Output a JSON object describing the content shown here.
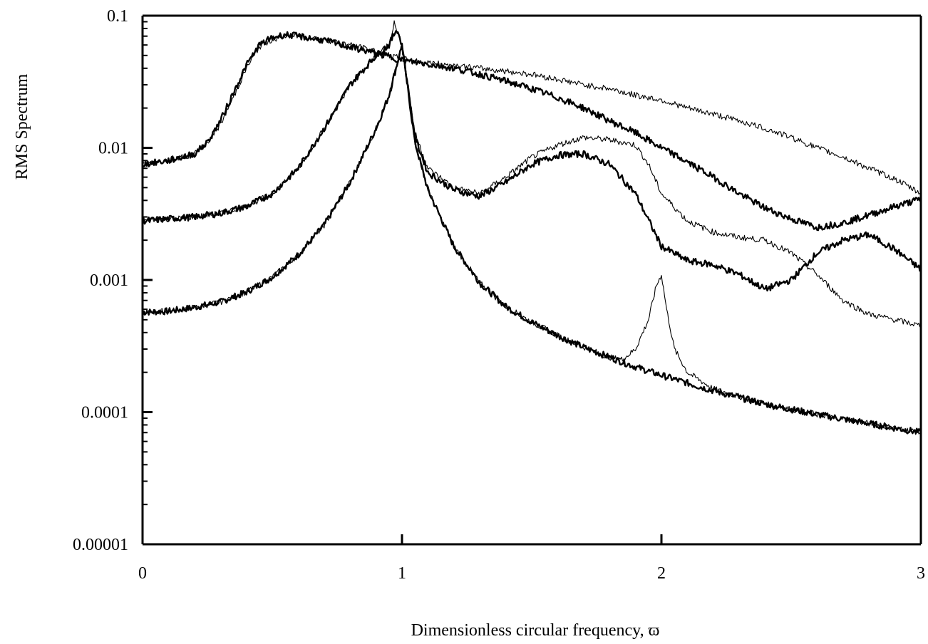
{
  "chart_data": {
    "type": "line",
    "xlabel": "Dimensionless circular frequency, ϖ",
    "ylabel": "RMS Spectrum",
    "xlim": [
      0,
      3
    ],
    "ylim": [
      1e-05,
      0.1
    ],
    "yscale": "log",
    "grid": false,
    "legend": "none",
    "x_ticks": [
      0,
      1,
      2,
      3
    ],
    "x_tick_labels": [
      "0",
      "1",
      "2",
      "3"
    ],
    "y_ticks": [
      1e-05,
      0.0001,
      0.001,
      0.01,
      0.1
    ],
    "y_tick_labels": [
      "0.00001",
      "0.0001",
      "0.001",
      "0.01",
      "0.1"
    ],
    "colors": {
      "line": "#000000",
      "axis": "#000000",
      "background": "#ffffff"
    },
    "series": [
      {
        "style": "thick",
        "x": [
          0,
          0.1,
          0.2,
          0.3,
          0.4,
          0.5,
          0.6,
          0.7,
          0.8,
          0.9,
          0.95,
          1.0,
          1.05,
          1.1,
          1.2,
          1.3,
          1.4,
          1.5,
          1.6,
          1.7,
          1.8,
          1.9,
          2.0,
          2.2,
          2.4,
          2.6,
          2.8,
          3.0
        ],
        "y": [
          0.00057,
          0.00058,
          0.00062,
          0.00068,
          0.00081,
          0.00105,
          0.00155,
          0.0026,
          0.0055,
          0.014,
          0.025,
          0.06,
          0.011,
          0.0048,
          0.0018,
          0.00095,
          0.00063,
          0.00048,
          0.00038,
          0.00031,
          0.00026,
          0.00022,
          0.00019,
          0.000145,
          0.000115,
          9.6e-05,
          8.2e-05,
          7e-05
        ]
      },
      {
        "style": "thin",
        "x": [
          0,
          0.1,
          0.2,
          0.3,
          0.4,
          0.5,
          0.6,
          0.7,
          0.8,
          0.9,
          0.95,
          1.0,
          1.05,
          1.1,
          1.2,
          1.3,
          1.4,
          1.5,
          1.6,
          1.7,
          1.8,
          1.85,
          1.9,
          1.95,
          1.98,
          2.0,
          2.02,
          2.05,
          2.1,
          2.2,
          2.4,
          2.6,
          2.8,
          3.0
        ],
        "y": [
          0.00057,
          0.00058,
          0.00062,
          0.00068,
          0.00081,
          0.00105,
          0.00155,
          0.0026,
          0.0055,
          0.014,
          0.025,
          0.06,
          0.011,
          0.0048,
          0.0018,
          0.00095,
          0.00063,
          0.00048,
          0.00038,
          0.00031,
          0.00026,
          0.00025,
          0.0003,
          0.0005,
          0.0009,
          0.0011,
          0.0006,
          0.0003,
          0.0002,
          0.00015,
          0.000115,
          9.6e-05,
          8.2e-05,
          7e-05
        ]
      },
      {
        "style": "thick",
        "x": [
          0,
          0.1,
          0.2,
          0.3,
          0.4,
          0.5,
          0.6,
          0.7,
          0.8,
          0.9,
          0.95,
          0.98,
          1.0,
          1.05,
          1.1,
          1.2,
          1.3,
          1.4,
          1.5,
          1.6,
          1.7,
          1.8,
          1.9,
          2.0,
          2.1,
          2.2,
          2.3,
          2.4,
          2.5,
          2.6,
          2.7,
          2.8,
          2.9,
          3.0
        ],
        "y": [
          0.0028,
          0.0029,
          0.003,
          0.0032,
          0.0036,
          0.0045,
          0.007,
          0.014,
          0.03,
          0.05,
          0.06,
          0.08,
          0.06,
          0.012,
          0.0065,
          0.0048,
          0.0043,
          0.0055,
          0.0075,
          0.0088,
          0.009,
          0.0075,
          0.0045,
          0.0018,
          0.0014,
          0.0013,
          0.0011,
          0.00085,
          0.001,
          0.0016,
          0.002,
          0.0022,
          0.0017,
          0.0012
        ]
      },
      {
        "style": "thin",
        "x": [
          0,
          0.1,
          0.2,
          0.3,
          0.4,
          0.5,
          0.6,
          0.7,
          0.8,
          0.9,
          0.95,
          0.97,
          1.0,
          1.05,
          1.1,
          1.2,
          1.3,
          1.4,
          1.5,
          1.6,
          1.7,
          1.8,
          1.9,
          1.95,
          2.0,
          2.1,
          2.2,
          2.3,
          2.4,
          2.5,
          2.6,
          2.7,
          2.8,
          2.9,
          3.0
        ],
        "y": [
          0.0028,
          0.0029,
          0.003,
          0.0032,
          0.0036,
          0.0045,
          0.007,
          0.014,
          0.03,
          0.05,
          0.062,
          0.088,
          0.06,
          0.013,
          0.007,
          0.005,
          0.0045,
          0.006,
          0.0085,
          0.0105,
          0.012,
          0.0115,
          0.0105,
          0.0075,
          0.0045,
          0.0028,
          0.0023,
          0.0021,
          0.002,
          0.0016,
          0.0011,
          0.0007,
          0.00055,
          0.0005,
          0.00045
        ]
      },
      {
        "style": "thick",
        "x": [
          0,
          0.1,
          0.2,
          0.25,
          0.3,
          0.35,
          0.4,
          0.45,
          0.5,
          0.55,
          0.6,
          0.7,
          0.8,
          0.9,
          1.0,
          1.1,
          1.2,
          1.3,
          1.4,
          1.5,
          1.6,
          1.7,
          1.8,
          1.9,
          2.0,
          2.1,
          2.2,
          2.3,
          2.4,
          2.5,
          2.6,
          2.7,
          2.8,
          2.9,
          3.0
        ],
        "y": [
          0.0075,
          0.008,
          0.009,
          0.011,
          0.016,
          0.026,
          0.042,
          0.06,
          0.068,
          0.072,
          0.07,
          0.065,
          0.058,
          0.052,
          0.046,
          0.043,
          0.04,
          0.036,
          0.032,
          0.028,
          0.024,
          0.02,
          0.016,
          0.013,
          0.01,
          0.0078,
          0.006,
          0.0045,
          0.0035,
          0.0029,
          0.0025,
          0.0027,
          0.0031,
          0.0036,
          0.0041
        ]
      },
      {
        "style": "thin",
        "x": [
          0,
          0.1,
          0.2,
          0.25,
          0.3,
          0.35,
          0.4,
          0.45,
          0.5,
          0.55,
          0.6,
          0.7,
          0.8,
          0.9,
          1.0,
          1.1,
          1.2,
          1.3,
          1.4,
          1.5,
          1.6,
          1.7,
          1.8,
          1.9,
          2.0,
          2.1,
          2.2,
          2.3,
          2.4,
          2.5,
          2.6,
          2.7,
          2.8,
          2.9,
          3.0
        ],
        "y": [
          0.0075,
          0.008,
          0.009,
          0.011,
          0.015,
          0.024,
          0.04,
          0.058,
          0.066,
          0.07,
          0.07,
          0.066,
          0.06,
          0.054,
          0.047,
          0.044,
          0.042,
          0.04,
          0.038,
          0.036,
          0.033,
          0.03,
          0.028,
          0.025,
          0.023,
          0.02,
          0.018,
          0.016,
          0.014,
          0.012,
          0.01,
          0.0085,
          0.007,
          0.0058,
          0.0045
        ]
      }
    ]
  }
}
